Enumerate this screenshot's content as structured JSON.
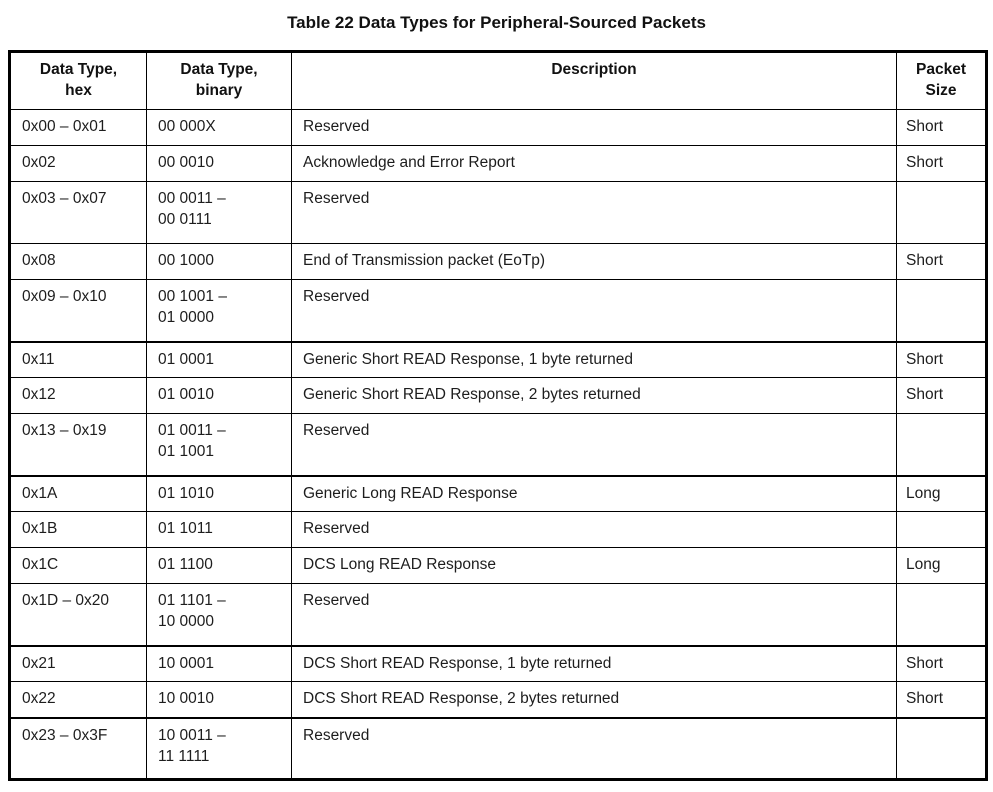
{
  "title": "Table 22 Data Types for Peripheral-Sourced Packets",
  "colors": {
    "border": "#000000",
    "text": "#1d1d1d",
    "background": "#ffffff"
  },
  "table": {
    "headers": {
      "hex": "Data Type,\nhex",
      "binary": "Data Type,\nbinary",
      "description": "Description",
      "size": "Packet\nSize"
    },
    "rows": [
      {
        "hex": "0x00 – 0x01",
        "binary": "00 000X",
        "description": "Reserved",
        "size": "Short"
      },
      {
        "hex": "0x02",
        "binary": "00 0010",
        "description": "Acknowledge and Error Report",
        "size": "Short"
      },
      {
        "hex": "0x03 – 0x07",
        "binary": "00 0011 –\n00 0111",
        "description": "Reserved",
        "size": ""
      },
      {
        "hex": "0x08",
        "binary": "00 1000",
        "description": "End of Transmission packet (EoTp)",
        "size": "Short"
      },
      {
        "hex": "0x09 – 0x10",
        "binary": "00 1001 –\n01 0000",
        "description": "Reserved",
        "size": ""
      },
      {
        "hex": "0x11",
        "binary": "01 0001",
        "description": "Generic Short READ Response, 1 byte returned",
        "size": "Short"
      },
      {
        "hex": "0x12",
        "binary": "01 0010",
        "description": "Generic Short READ Response, 2 bytes returned",
        "size": "Short"
      },
      {
        "hex": "0x13 – 0x19",
        "binary": "01 0011 –\n01 1001",
        "description": "Reserved",
        "size": ""
      },
      {
        "hex": "0x1A",
        "binary": "01 1010",
        "description": "Generic Long READ Response",
        "size": "Long"
      },
      {
        "hex": "0x1B",
        "binary": "01 1011",
        "description": "Reserved",
        "size": ""
      },
      {
        "hex": "0x1C",
        "binary": "01 1100",
        "description": "DCS Long READ Response",
        "size": "Long"
      },
      {
        "hex": "0x1D – 0x20",
        "binary": "01 1101 –\n10 0000",
        "description": "Reserved",
        "size": ""
      },
      {
        "hex": "0x21",
        "binary": "10 0001",
        "description": "DCS Short READ Response, 1 byte returned",
        "size": "Short"
      },
      {
        "hex": "0x22",
        "binary": "10 0010",
        "description": "DCS Short READ Response, 2 bytes returned",
        "size": "Short"
      },
      {
        "hex": "0x23 – 0x3F",
        "binary": "10 0011 –\n11 1111",
        "description": "Reserved",
        "size": ""
      }
    ]
  }
}
